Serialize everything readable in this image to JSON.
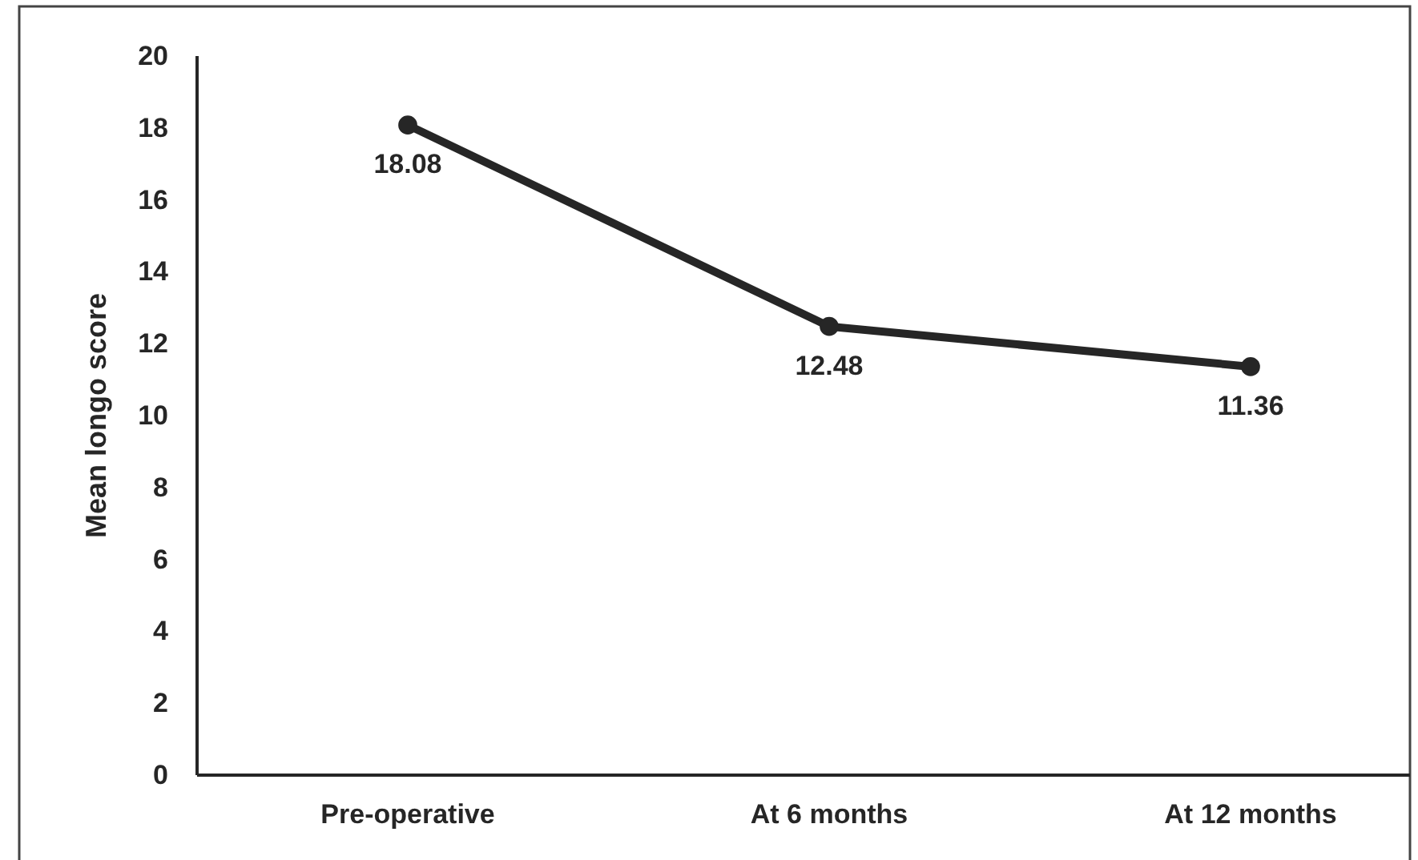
{
  "chart_data": {
    "type": "line",
    "ylabel": "Mean longo score",
    "categories": [
      "Pre-operative",
      "At 6 months",
      "At 12 months"
    ],
    "series": [
      {
        "color": "#262626",
        "values": [
          18.08,
          12.48,
          11.36
        ]
      }
    ],
    "ylim": [
      0,
      20
    ],
    "yticks": [
      0,
      2,
      4,
      6,
      8,
      10,
      12,
      14,
      16,
      18,
      20
    ],
    "marker": "circle",
    "data_labels": true
  }
}
